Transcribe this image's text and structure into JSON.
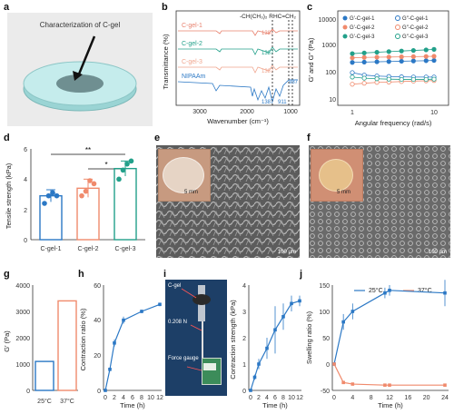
{
  "panels": {
    "a": "a",
    "b": "b",
    "c": "c",
    "d": "d",
    "e": "e",
    "f": "f",
    "g": "g",
    "h": "h",
    "i": "i",
    "j": "j"
  },
  "panel_a": {
    "caption": "Characterization of C-gel"
  },
  "panel_b": {
    "xlabel": "Wavenumber (cm⁻¹)",
    "ylabel": "Transmittance (%)",
    "xticks": [
      "3000",
      "2000",
      "1000"
    ],
    "traces": [
      "C-gel-1",
      "C-gel-2",
      "C-gel-3",
      "NIPAAm"
    ],
    "trace_colors": [
      "#e8826f",
      "#22a08a",
      "#f0a58e",
      "#2b78c5"
    ],
    "annot_top": "-CH(CH₃)₂ RHC=CH₂",
    "peaks": [
      "1387",
      "1387",
      "1387",
      "1387",
      "987",
      "911"
    ]
  },
  "panel_c": {
    "xlabel": "Angular frequency (rad/s)",
    "ylabel": "G′ and G″ (Pa)",
    "yticks": [
      "10000",
      "1000",
      "100",
      "10"
    ],
    "xticks": [
      "1",
      "10"
    ],
    "legend": [
      "G′-C-gel-1",
      "G″-C-gel-1",
      "G′-C-gel-2",
      "G″-C-gel-2",
      "G′-C-gel-3",
      "G″-C-gel-3"
    ]
  },
  "panel_d": {
    "ylabel": "Tensile strength (kPa)",
    "yticks": [
      "6",
      "4",
      "2",
      "0"
    ],
    "categories": [
      "C-gel-1",
      "C-gel-2",
      "C-gel-3"
    ],
    "sig1": "**",
    "sig2": "*"
  },
  "panel_e": {
    "inset_scale": "5 mm",
    "scale": "100 μm"
  },
  "panel_f": {
    "inset_scale": "5 mm",
    "scale": "100 μm"
  },
  "panel_g": {
    "ylabel": "G′ (Pa)",
    "yticks": [
      "4000",
      "3000",
      "2000",
      "1000",
      "0"
    ],
    "categories": [
      "25°C",
      "37°C"
    ]
  },
  "panel_h": {
    "ylabel": "Contraction ratio (%)",
    "xlabel": "Time (h)",
    "yticks": [
      "60",
      "40",
      "20",
      "0"
    ],
    "xticks": [
      "0",
      "2",
      "4",
      "6",
      "8",
      "10",
      "12"
    ]
  },
  "panel_i": {
    "labels": [
      "C-gel",
      "0.208 N",
      "Force gauge"
    ],
    "ylabel": "Contraction strength (kPa)",
    "xlabel": "Time (h)",
    "yticks": [
      "4",
      "3",
      "2",
      "1",
      "0"
    ],
    "xticks": [
      "0",
      "2",
      "4",
      "6",
      "8",
      "10",
      "12"
    ]
  },
  "panel_j": {
    "ylabel": "Swelling ratio (%)",
    "xlabel": "Time (h)",
    "legend": [
      "25°C",
      "37°C"
    ],
    "yticks": [
      "150",
      "100",
      "50",
      "0",
      "-50"
    ],
    "xticks": [
      "0",
      "4",
      "8",
      "12",
      "16",
      "20",
      "24"
    ]
  },
  "chart_data": [
    {
      "type": "line",
      "id": "c",
      "xlabel": "Angular frequency (rad/s)",
      "ylabel": "G′ and G″ (Pa)",
      "log_x": true,
      "log_y": true,
      "ylim": [
        10,
        30000
      ],
      "x": [
        1,
        1.4,
        2,
        2.8,
        4,
        5.6,
        8,
        10
      ],
      "series": [
        {
          "name": "G′-C-gel-1",
          "values": [
            380,
            390,
            400,
            410,
            420,
            430,
            440,
            450
          ],
          "color": "#2b78c5",
          "filled": true
        },
        {
          "name": "G″-C-gel-1",
          "values": [
            160,
            130,
            120,
            115,
            112,
            110,
            110,
            110
          ],
          "color": "#2b78c5",
          "filled": false
        },
        {
          "name": "G′-C-gel-2",
          "values": [
            560,
            580,
            590,
            600,
            610,
            620,
            630,
            640
          ],
          "color": "#f08a6c",
          "filled": true
        },
        {
          "name": "G″-C-gel-2",
          "values": [
            60,
            65,
            70,
            72,
            75,
            78,
            80,
            82
          ],
          "color": "#f08a6c",
          "filled": false
        },
        {
          "name": "G′-C-gel-3",
          "values": [
            800,
            850,
            900,
            950,
            1000,
            1050,
            1100,
            1150
          ],
          "color": "#22a08a",
          "filled": true
        },
        {
          "name": "G″-C-gel-3",
          "values": [
            110,
            100,
            95,
            92,
            90,
            90,
            90,
            92
          ],
          "color": "#22a08a",
          "filled": false
        }
      ]
    },
    {
      "type": "bar",
      "id": "d",
      "categories": [
        "C-gel-1",
        "C-gel-2",
        "C-gel-3"
      ],
      "values": [
        2.9,
        3.4,
        4.7
      ],
      "errors": [
        0.4,
        0.6,
        0.5
      ],
      "ylim": [
        0,
        6
      ],
      "points": [
        [
          2.4,
          2.9,
          3.1,
          2.9
        ],
        [
          2.9,
          3.2,
          3.9,
          3.7
        ],
        [
          4.0,
          4.6,
          5.0,
          5.2
        ]
      ],
      "colors": [
        "#2b78c5",
        "#f08a6c",
        "#22a08a"
      ],
      "ylabel": "Tensile strength (kPa)"
    },
    {
      "type": "bar",
      "id": "g",
      "categories": [
        "25°C",
        "37°C"
      ],
      "values": [
        1100,
        3400
      ],
      "ylim": [
        0,
        4000
      ],
      "colors": [
        "#2b78c5",
        "#f08a6c"
      ],
      "ylabel": "G′ (Pa)"
    },
    {
      "type": "line",
      "id": "h",
      "x": [
        0,
        1,
        2,
        4,
        8,
        12
      ],
      "values": [
        0,
        12,
        27,
        40,
        45,
        49
      ],
      "errors": [
        0,
        1,
        2,
        2,
        1,
        1
      ],
      "ylim": [
        0,
        60
      ],
      "xlim": [
        0,
        12
      ],
      "color": "#2b78c5",
      "ylabel": "Contraction ratio (%)",
      "xlabel": "Time (h)"
    },
    {
      "type": "line",
      "id": "i",
      "x": [
        0,
        1,
        2,
        4,
        6,
        8,
        10,
        12
      ],
      "values": [
        0,
        0.5,
        1.0,
        1.6,
        2.3,
        2.8,
        3.3,
        3.4
      ],
      "errors": [
        0,
        0.1,
        0.2,
        0.4,
        0.9,
        0.5,
        0.3,
        0.2
      ],
      "ylim": [
        0,
        4
      ],
      "xlim": [
        0,
        12
      ],
      "color": "#2b78c5",
      "ylabel": "Contraction strength (kPa)",
      "xlabel": "Time (h)"
    },
    {
      "type": "line",
      "id": "j",
      "x": [
        0,
        2,
        4,
        11,
        12,
        24
      ],
      "xlim": [
        0,
        24
      ],
      "ylim": [
        -50,
        150
      ],
      "xlabel": "Time (h)",
      "ylabel": "Swelling ratio (%)",
      "series": [
        {
          "name": "25°C",
          "values": [
            0,
            80,
            100,
            135,
            140,
            135
          ],
          "errors": [
            0,
            15,
            15,
            10,
            10,
            25
          ],
          "color": "#2b78c5"
        },
        {
          "name": "37°C",
          "values": [
            0,
            -35,
            -38,
            -40,
            -40,
            -40
          ],
          "errors": [
            0,
            3,
            2,
            2,
            2,
            2
          ],
          "color": "#f08a6c"
        }
      ]
    }
  ]
}
